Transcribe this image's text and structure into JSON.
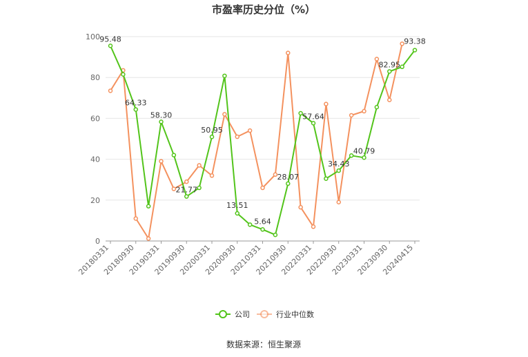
{
  "chart_data": {
    "type": "line",
    "title": "市盈率历史分位（%）",
    "ylim": [
      0,
      100
    ],
    "yticks": [
      0,
      20,
      40,
      60,
      80,
      100
    ],
    "x_tick_labels": [
      "20180331",
      "20180930",
      "20190331",
      "20190930",
      "20200331",
      "20200930",
      "20210331",
      "20210930",
      "20220331",
      "20220930",
      "20230331",
      "20230930",
      "20240415"
    ],
    "x": [
      "20180331",
      "20180630",
      "20180930",
      "20181231",
      "20190331",
      "20190630",
      "20190930",
      "20191231",
      "20200331",
      "20200630",
      "20200930",
      "20201231",
      "20210331",
      "20210630",
      "20210930",
      "20211231",
      "20220331",
      "20220630",
      "20220930",
      "20221231",
      "20230331",
      "20230630",
      "20230930",
      "20231231",
      "20240415"
    ],
    "series": [
      {
        "name": "公司",
        "color": "#52c41a",
        "values": [
          95.48,
          81.5,
          64.33,
          17.0,
          58.3,
          42.0,
          21.77,
          26.0,
          50.95,
          80.8,
          13.51,
          8.0,
          5.64,
          3.0,
          28.07,
          62.5,
          57.64,
          30.5,
          34.43,
          41.8,
          40.79,
          65.5,
          82.95,
          85.2,
          93.38
        ]
      },
      {
        "name": "行业中位数",
        "color": "#f4915e",
        "values": [
          73.5,
          83.5,
          11.0,
          1.2,
          39.0,
          25.5,
          29.0,
          37.0,
          32.0,
          62.0,
          51.0,
          54.0,
          26.0,
          32.5,
          92.0,
          16.5,
          7.0,
          67.0,
          19.0,
          61.5,
          63.5,
          89.0,
          69.0,
          96.5,
          null
        ]
      }
    ],
    "data_labels": [
      {
        "series": 0,
        "index": 0,
        "text": "95.48"
      },
      {
        "series": 0,
        "index": 2,
        "text": "64.33"
      },
      {
        "series": 0,
        "index": 4,
        "text": "58.30"
      },
      {
        "series": 0,
        "index": 6,
        "text": "21.77"
      },
      {
        "series": 0,
        "index": 8,
        "text": "50.95"
      },
      {
        "series": 0,
        "index": 10,
        "text": "13.51"
      },
      {
        "series": 0,
        "index": 12,
        "text": "5.64"
      },
      {
        "series": 0,
        "index": 14,
        "text": "28.07"
      },
      {
        "series": 0,
        "index": 16,
        "text": "57.64"
      },
      {
        "series": 0,
        "index": 18,
        "text": "34.43"
      },
      {
        "series": 0,
        "index": 20,
        "text": "40.79"
      },
      {
        "series": 0,
        "index": 22,
        "text": "82.95"
      },
      {
        "series": 0,
        "index": 24,
        "text": "93.38"
      }
    ],
    "grid": true,
    "legend_position": "bottom"
  },
  "legend": {
    "company": "公司",
    "industry": "行业中位数"
  },
  "source": "数据来源：恒生聚源"
}
